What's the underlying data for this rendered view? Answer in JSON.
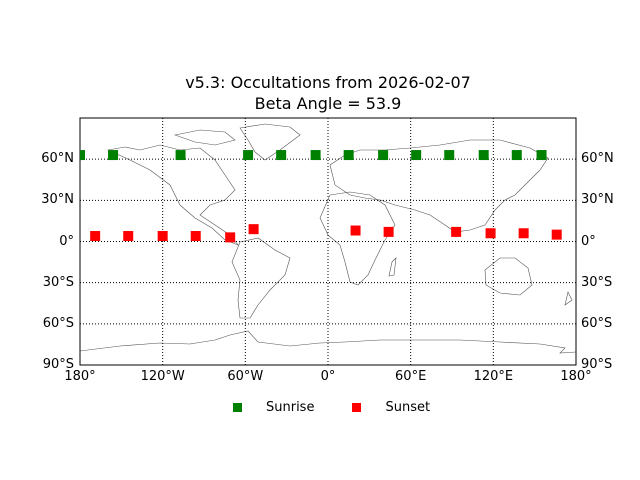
{
  "chart_data": {
    "type": "scatter",
    "title": "v5.3: Occultations from 2026-02-07",
    "subtitle": "Beta Angle = 53.9",
    "xlabel": "",
    "ylabel": "",
    "projection": "cylindrical (world map with coastlines and country borders)",
    "xlim": [
      -180,
      180
    ],
    "ylim": [
      -90,
      90
    ],
    "grid": true,
    "x_ticks": [
      -180,
      -120,
      -60,
      0,
      60,
      120,
      180
    ],
    "x_tick_labels": [
      "180°",
      "120°W",
      "60°W",
      "0°",
      "60°E",
      "120°E",
      "180°"
    ],
    "y_ticks": [
      -90,
      -60,
      -30,
      0,
      30,
      60
    ],
    "y_tick_labels": [
      "90°S",
      "60°S",
      "30°S",
      "0°",
      "30°N",
      "60°N"
    ],
    "legend_position": "below plot, centered",
    "series": [
      {
        "name": "Sunrise",
        "color": "#008000",
        "marker": "square",
        "points": [
          {
            "lon": -180,
            "lat": 63
          },
          {
            "lon": -156,
            "lat": 63
          },
          {
            "lon": -107,
            "lat": 63
          },
          {
            "lon": -58,
            "lat": 63
          },
          {
            "lon": -34,
            "lat": 63
          },
          {
            "lon": -9,
            "lat": 63
          },
          {
            "lon": 15,
            "lat": 63
          },
          {
            "lon": 40,
            "lat": 63
          },
          {
            "lon": 64,
            "lat": 63
          },
          {
            "lon": 88,
            "lat": 63
          },
          {
            "lon": 113,
            "lat": 63
          },
          {
            "lon": 137,
            "lat": 63
          },
          {
            "lon": 155,
            "lat": 63
          }
        ]
      },
      {
        "name": "Sunset",
        "color": "#ff0000",
        "marker": "square",
        "points": [
          {
            "lon": -169,
            "lat": 4
          },
          {
            "lon": -145,
            "lat": 4
          },
          {
            "lon": -120,
            "lat": 4
          },
          {
            "lon": -96,
            "lat": 4
          },
          {
            "lon": -71,
            "lat": 3
          },
          {
            "lon": -54,
            "lat": 9
          },
          {
            "lon": 20,
            "lat": 8
          },
          {
            "lon": 44,
            "lat": 7
          },
          {
            "lon": 93,
            "lat": 7
          },
          {
            "lon": 118,
            "lat": 6
          },
          {
            "lon": 142,
            "lat": 6
          },
          {
            "lon": 166,
            "lat": 5
          }
        ]
      }
    ]
  },
  "legend": {
    "items": [
      {
        "label": "Sunrise",
        "color": "#008000"
      },
      {
        "label": "Sunset",
        "color": "#ff0000"
      }
    ]
  }
}
